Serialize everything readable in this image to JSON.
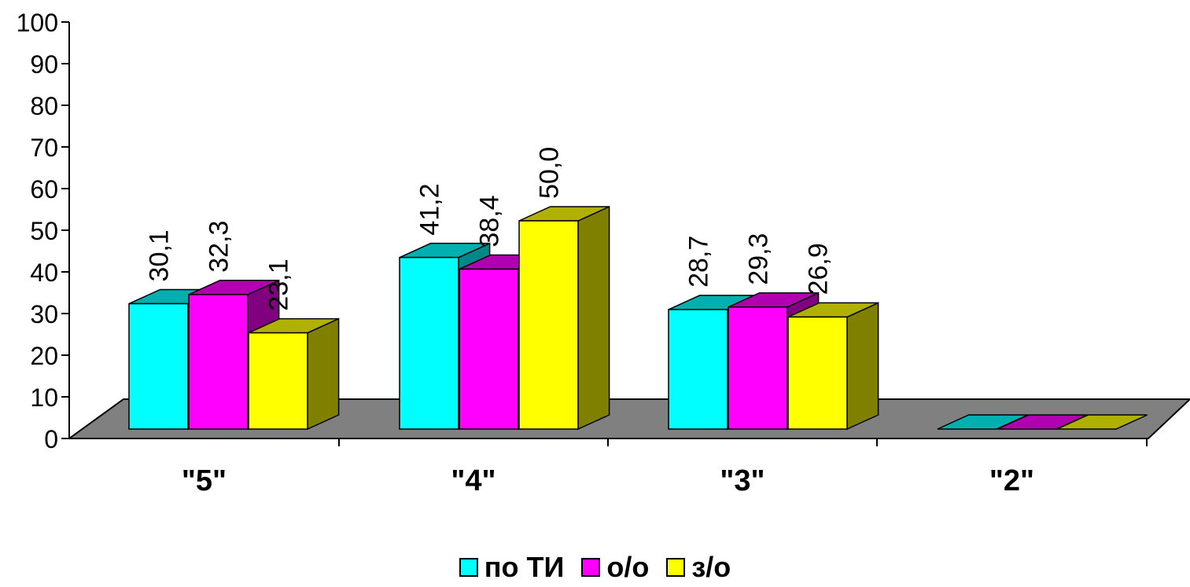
{
  "chart_data": {
    "type": "bar",
    "categories": [
      "\"5\"",
      "\"4\"",
      "\"3\"",
      "\"2\""
    ],
    "series": [
      {
        "name": "по ТИ",
        "values": [
          30.1,
          41.2,
          28.7,
          0
        ],
        "labels": [
          "30,1",
          "41,2",
          "28,7",
          ""
        ],
        "color": "#00FFFF",
        "top_color": "#00B0B0",
        "side_color": "#008888"
      },
      {
        "name": "о/о",
        "values": [
          32.3,
          38.4,
          29.3,
          0
        ],
        "labels": [
          "32,3",
          "38,4",
          "29,3",
          ""
        ],
        "color": "#FF00FF",
        "top_color": "#B000B0",
        "side_color": "#800080"
      },
      {
        "name": "з/о",
        "values": [
          23.1,
          50.0,
          26.9,
          0
        ],
        "labels": [
          "23,1",
          "50,0",
          "26,9",
          ""
        ],
        "color": "#FFFF00",
        "top_color": "#B0B000",
        "side_color": "#808000"
      }
    ],
    "ylim": [
      0,
      100
    ],
    "yticks": [
      0,
      10,
      20,
      30,
      40,
      50,
      60,
      70,
      80,
      90,
      100
    ],
    "floor_color": "#808080",
    "legend_position": "bottom",
    "three_d": true
  }
}
